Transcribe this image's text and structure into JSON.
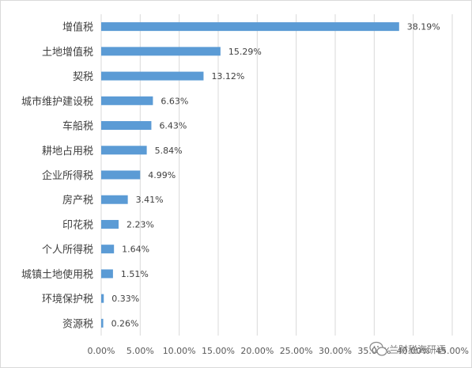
{
  "chart_data": {
    "type": "bar",
    "orientation": "horizontal",
    "categories": [
      "增值税",
      "土地增值税",
      "契税",
      "城市维护建设税",
      "车船税",
      "耕地占用税",
      "企业所得税",
      "房产税",
      "印花税",
      "个人所得税",
      "城镇土地使用税",
      "环境保护税",
      "资源税"
    ],
    "values": [
      38.19,
      15.29,
      13.12,
      6.63,
      6.43,
      5.84,
      4.99,
      3.41,
      2.23,
      1.64,
      1.51,
      0.33,
      0.26
    ],
    "value_labels": [
      "38.19%",
      "15.29%",
      "13.12%",
      "6.63%",
      "6.43%",
      "5.84%",
      "4.99%",
      "3.41%",
      "2.23%",
      "1.64%",
      "1.51%",
      "0.33%",
      "0.26%"
    ],
    "x_ticks": [
      "0.00%",
      "5.00%",
      "10.00%",
      "15.00%",
      "20.00%",
      "25.00%",
      "30.00%",
      "35.00%",
      "40.00%",
      "45.00%"
    ],
    "xlim": [
      0,
      45
    ],
    "title": "",
    "xlabel": "",
    "ylabel": "",
    "grid": "vertical",
    "legend": "none",
    "bar_color": "#5b9bd5"
  },
  "watermark": {
    "text": "兰财税海研语",
    "icon": "wechat-icon"
  }
}
